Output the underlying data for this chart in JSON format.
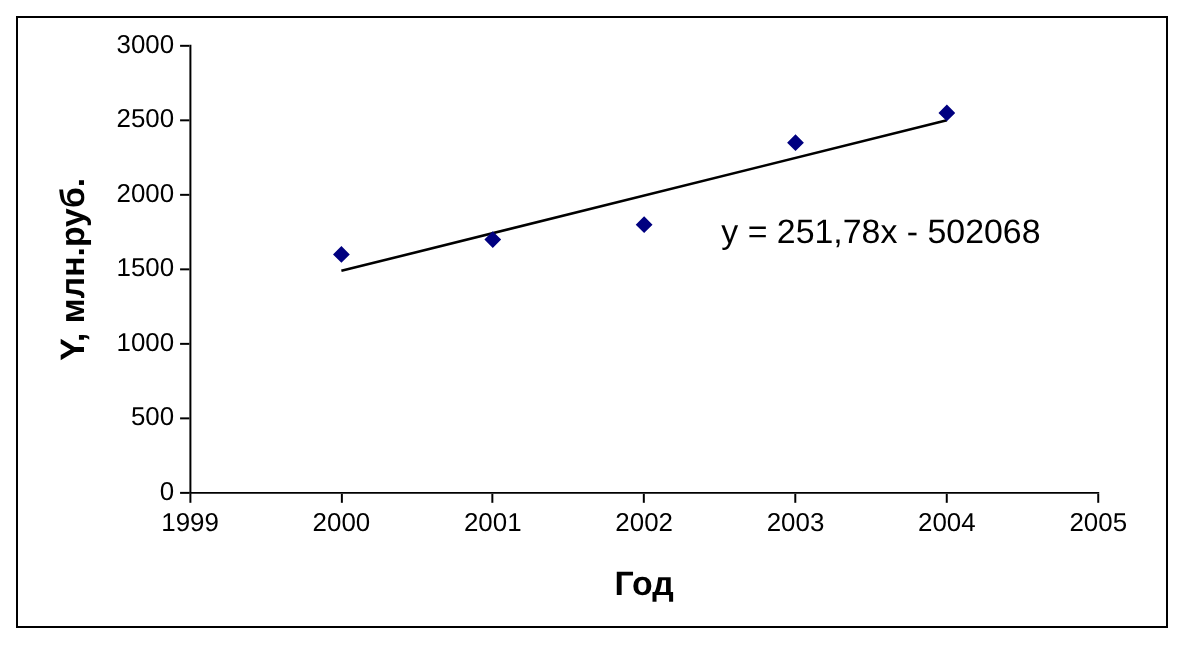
{
  "chart_data": {
    "type": "scatter",
    "xlabel": "Год",
    "ylabel": "Y, млн.руб.",
    "series": [
      {
        "type": "scatter",
        "color": "#000080",
        "x": [
          2000,
          2001,
          2002,
          2003,
          2004
        ],
        "values": [
          1600,
          1700,
          1800,
          2350,
          2550
        ],
        "marker": "diamond"
      },
      {
        "type": "line",
        "color": "#000000",
        "x": [
          2000,
          2004
        ],
        "values": [
          1490,
          2500
        ],
        "marker": "none",
        "line_style": "solid"
      }
    ],
    "xlim": [
      1999,
      2005
    ],
    "xticks": [
      1999,
      2000,
      2001,
      2002,
      2003,
      2004,
      2005
    ],
    "ylim": [
      0,
      3000
    ],
    "yticks": [
      0,
      500,
      1000,
      1500,
      2000,
      2500,
      3000
    ],
    "grid": false,
    "legend": false,
    "annotations": [
      "y = 251,78x - 502068"
    ]
  }
}
